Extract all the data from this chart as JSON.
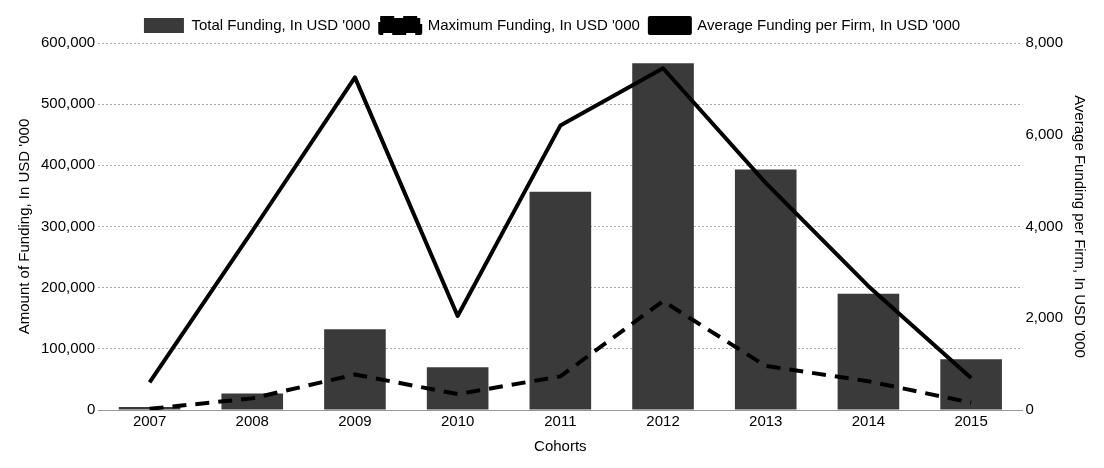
{
  "chart_data": {
    "type": "bar",
    "xlabel": "Cohorts",
    "ylabel": "Amount of Funding, In USD '000",
    "y2label": "Average Funding per Firm, In USD '000",
    "categories": [
      "2007",
      "2008",
      "2009",
      "2010",
      "2011",
      "2012",
      "2013",
      "2014",
      "2015"
    ],
    "series": [
      {
        "name": "Total Funding, In USD '000",
        "color": "#3a3a3a",
        "values": [
          5000,
          27000,
          132000,
          70000,
          357000,
          567000,
          393000,
          190000,
          83000
        ]
      },
      {
        "name": "Maximum Funding, In USD '000",
        "type": "line",
        "line_style": "dashed",
        "color": "#000000",
        "values": [
          2000,
          19000,
          58000,
          26000,
          55000,
          178000,
          72000,
          47000,
          12000
        ]
      },
      {
        "name": "Average Funding per Firm, In USD '000",
        "type": "line",
        "axis": "y2",
        "line_style": "solid",
        "color": "#000000",
        "values": [
          600,
          3900,
          7250,
          2050,
          6200,
          7450,
          4950,
          2700,
          700
        ]
      }
    ],
    "ylim": [
      0,
      600000
    ],
    "yticks": [
      0,
      {
        "value": 100000,
        "label": "100,000"
      },
      {
        "value": 200000,
        "label": "200,000"
      },
      {
        "value": 300000,
        "label": "300,000"
      },
      {
        "value": 400000,
        "label": "400,000"
      },
      {
        "value": 500000,
        "label": "500,000"
      },
      {
        "value": 600000,
        "label": "600,000"
      }
    ],
    "y2lim": [
      0,
      8000
    ],
    "y2ticks": [
      0,
      {
        "value": 2000,
        "label": "2,000"
      },
      {
        "value": 4000,
        "label": "4,000"
      },
      {
        "value": 6000,
        "label": "6,000"
      },
      {
        "value": 8000,
        "label": "8,000"
      }
    ],
    "grid": "y",
    "legend": "top",
    "marker": "none"
  }
}
